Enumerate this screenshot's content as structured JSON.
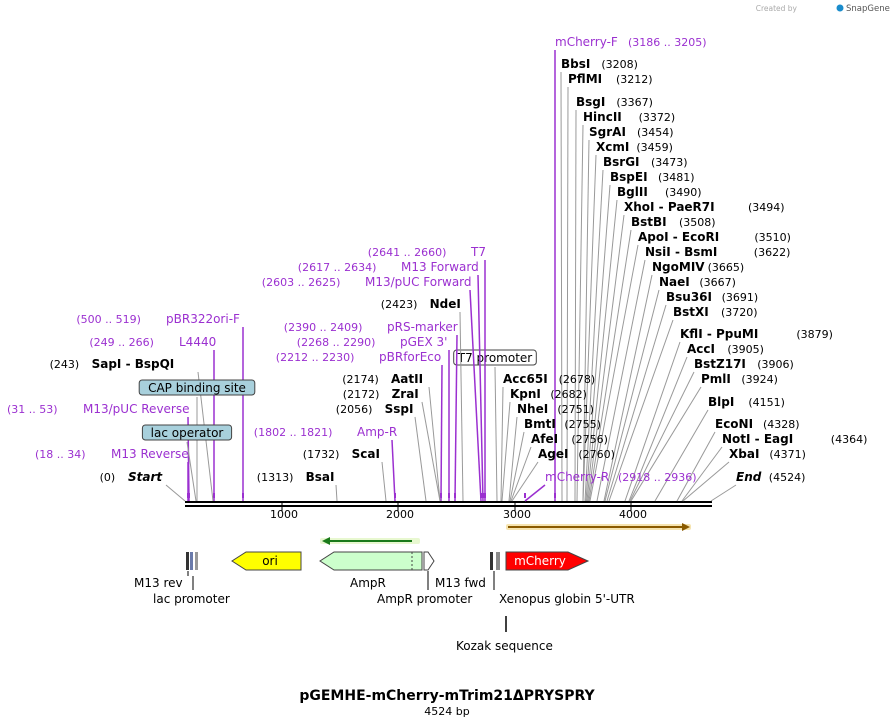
{
  "watermark": {
    "prefix": "Created by",
    "brand": "SnapGene"
  },
  "plasmid": {
    "name": "pGEMHE-mCherry-mTrim21ΔPRYSPRY",
    "length": "4524 bp"
  },
  "ruler": {
    "ticks": [
      "1000",
      "2000",
      "3000",
      "4000"
    ]
  },
  "sites": [
    {
      "pos": "(3186 .. 3205)",
      "name": "mCherry-F",
      "kind": "primer"
    },
    {
      "pos": "(3208)",
      "name": "BbsI",
      "kind": "enzyme"
    },
    {
      "pos": "(3212)",
      "name": "PflMI",
      "kind": "enzyme"
    },
    {
      "pos": "(3367)",
      "name": "BsgI",
      "kind": "enzyme"
    },
    {
      "pos": "(3372)",
      "name": "HincII",
      "kind": "enzyme"
    },
    {
      "pos": "(3454)",
      "name": "SgrAI",
      "kind": "enzyme"
    },
    {
      "pos": "(3459)",
      "name": "XcmI",
      "kind": "enzyme"
    },
    {
      "pos": "(3473)",
      "name": "BsrGI",
      "kind": "enzyme"
    },
    {
      "pos": "(3481)",
      "name": "BspEI",
      "kind": "enzyme"
    },
    {
      "pos": "(3490)",
      "name": "BglII",
      "kind": "enzyme"
    },
    {
      "pos": "(3494)",
      "name": "XhoI",
      "name2": "PaeR7I",
      "kind": "enzyme"
    },
    {
      "pos": "(3508)",
      "name": "BstBI",
      "kind": "enzyme"
    },
    {
      "pos": "(3510)",
      "name": "ApoI",
      "name2": "EcoRI",
      "kind": "enzyme"
    },
    {
      "pos": "(3622)",
      "name": "NsiI",
      "name2": "BsmI",
      "kind": "enzyme"
    },
    {
      "pos": "(3665)",
      "name": "NgoMIV",
      "kind": "enzyme"
    },
    {
      "pos": "(3667)",
      "name": "NaeI",
      "kind": "enzyme"
    },
    {
      "pos": "(3691)",
      "name": "Bsu36I",
      "kind": "enzyme"
    },
    {
      "pos": "(3720)",
      "name": "BstXI",
      "kind": "enzyme"
    },
    {
      "pos": "(3879)",
      "name": "KflI",
      "name2": "PpuMI",
      "kind": "enzyme"
    },
    {
      "pos": "(3905)",
      "name": "AccI",
      "kind": "enzyme"
    },
    {
      "pos": "(3906)",
      "name": "BstZ17I",
      "kind": "enzyme"
    },
    {
      "pos": "(3924)",
      "name": "PmlI",
      "kind": "enzyme"
    },
    {
      "pos": "(4151)",
      "name": "BlpI",
      "kind": "enzyme"
    },
    {
      "pos": "(4328)",
      "name": "EcoNI",
      "kind": "enzyme"
    },
    {
      "pos": "(4364)",
      "name": "NotI",
      "name2": "EagI",
      "kind": "enzyme"
    },
    {
      "pos": "(4371)",
      "name": "XbaI",
      "kind": "enzyme"
    },
    {
      "pos": "(4524)",
      "name": "End",
      "kind": "end"
    },
    {
      "pos": "(2918 .. 2936)",
      "name": "mCherry-R",
      "kind": "primer"
    },
    {
      "pos": "(2760)",
      "name": "AgeI",
      "kind": "enzyme"
    },
    {
      "pos": "(2756)",
      "name": "AfeI",
      "kind": "enzyme"
    },
    {
      "pos": "(2755)",
      "name": "BmtI",
      "kind": "enzyme"
    },
    {
      "pos": "(2751)",
      "name": "NheI",
      "kind": "enzyme"
    },
    {
      "pos": "(2682)",
      "name": "KpnI",
      "kind": "enzyme"
    },
    {
      "pos": "(2678)",
      "name": "Acc65I",
      "kind": "enzyme"
    },
    {
      "pos": "",
      "name": "T7 promoter",
      "kind": "feature-box"
    },
    {
      "pos": "(2641 .. 2660)",
      "name": "T7",
      "kind": "primer"
    },
    {
      "pos": "(2617 .. 2634)",
      "name": "M13 Forward",
      "kind": "primer"
    },
    {
      "pos": "(2603 .. 2625)",
      "name": "M13/pUC Forward",
      "kind": "primer"
    },
    {
      "pos": "(2423)",
      "name": "NdeI",
      "kind": "enzyme"
    },
    {
      "pos": "(2390 .. 2409)",
      "name": "pRS-marker",
      "kind": "primer"
    },
    {
      "pos": "(2268 .. 2290)",
      "name": "pGEX 3'",
      "kind": "primer"
    },
    {
      "pos": "(2212 .. 2230)",
      "name": "pBRforEco",
      "kind": "primer"
    },
    {
      "pos": "(2174)",
      "name": "AatII",
      "kind": "enzyme"
    },
    {
      "pos": "(2172)",
      "name": "ZraI",
      "kind": "enzyme"
    },
    {
      "pos": "(2056)",
      "name": "SspI",
      "kind": "enzyme"
    },
    {
      "pos": "(1802 .. 1821)",
      "name": "Amp-R",
      "kind": "primer"
    },
    {
      "pos": "(1732)",
      "name": "ScaI",
      "kind": "enzyme"
    },
    {
      "pos": "(1313)",
      "name": "BsaI",
      "kind": "enzyme"
    },
    {
      "pos": "(500 .. 519)",
      "name": "pBR322ori-F",
      "kind": "primer"
    },
    {
      "pos": "(249 .. 266)",
      "name": "L4440",
      "kind": "primer"
    },
    {
      "pos": "(243)",
      "name": "SapI",
      "name2": "BspQI",
      "kind": "enzyme"
    },
    {
      "pos": "",
      "name": "CAP binding site",
      "kind": "feature-box"
    },
    {
      "pos": "(31 .. 53)",
      "name": "M13/pUC Reverse",
      "kind": "primer"
    },
    {
      "pos": "",
      "name": "lac operator",
      "kind": "feature-box"
    },
    {
      "pos": "(18 .. 34)",
      "name": "M13 Reverse",
      "kind": "primer"
    },
    {
      "pos": "(0)",
      "name": "Start",
      "kind": "end"
    }
  ],
  "features": [
    {
      "name": "ori",
      "label_inside": true
    },
    {
      "name": "AmpR",
      "label_inside": false
    },
    {
      "name": "mCherry",
      "label_inside": true
    }
  ],
  "feature_labels": [
    "M13 rev",
    "lac promoter",
    "AmpR",
    "M13 fwd",
    "AmpR promoter",
    "Xenopus globin 5'-UTR",
    "Kozak sequence"
  ],
  "colors": {
    "primer": "#9b30d0",
    "enzyme": "#000000",
    "feature_box": "#a8d0dc",
    "ori": "#ffff00",
    "ampr": "#ccffcc",
    "mcherry": "#ff0000",
    "orf": "#e0a020"
  }
}
